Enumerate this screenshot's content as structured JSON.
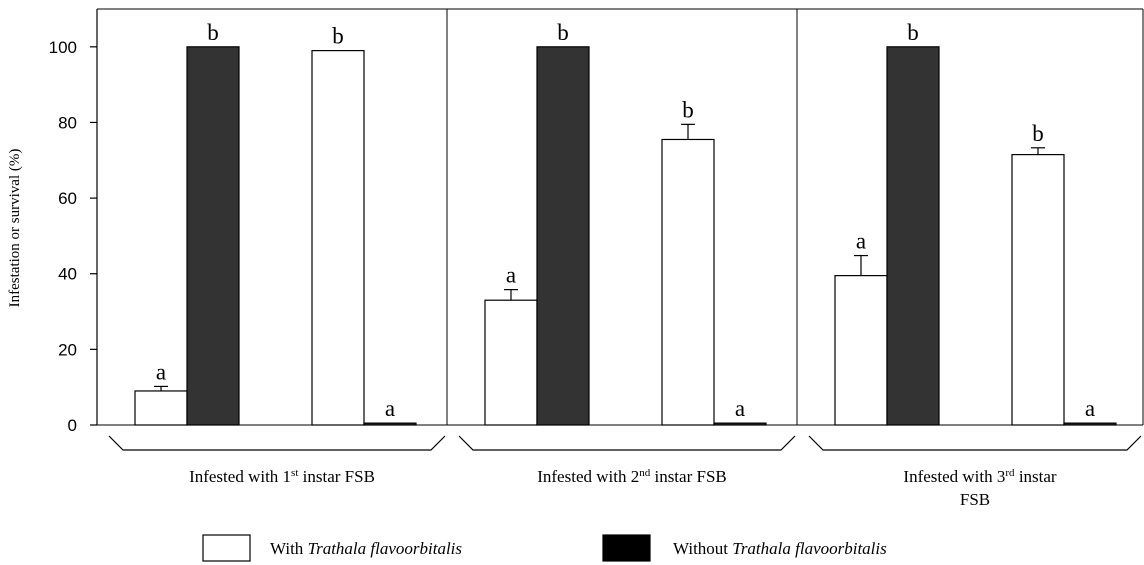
{
  "chart_data": {
    "type": "bar",
    "ylabel": "Infestation or survival (%)",
    "ylim": [
      0,
      110
    ],
    "yticks": [
      0,
      20,
      40,
      60,
      80,
      100
    ],
    "groups": [
      {
        "label_parts": [
          {
            "text": "Infested with 1",
            "sup": false
          },
          {
            "text": "st",
            "sup": true
          },
          {
            "text": " instar FSB",
            "sup": false
          }
        ],
        "bars": [
          {
            "value": 9,
            "error": 1.2,
            "fill": "white",
            "letter": "a"
          },
          {
            "value": 100,
            "error": 0,
            "fill": "dark",
            "letter": "b"
          },
          {
            "value": 99,
            "error": 0,
            "fill": "white",
            "letter": "b"
          },
          {
            "value": 0.5,
            "error": 0,
            "fill": "dark",
            "letter": "a"
          }
        ]
      },
      {
        "label_parts": [
          {
            "text": "Infested with 2",
            "sup": false
          },
          {
            "text": "nd",
            "sup": true
          },
          {
            "text": "  instar FSB",
            "sup": false
          }
        ],
        "bars": [
          {
            "value": 33,
            "error": 2.8,
            "fill": "white",
            "letter": "a"
          },
          {
            "value": 100,
            "error": 0,
            "fill": "dark",
            "letter": "b"
          },
          {
            "value": 75.5,
            "error": 4,
            "fill": "white",
            "letter": "b"
          },
          {
            "value": 0.5,
            "error": 0,
            "fill": "dark",
            "letter": "a"
          }
        ]
      },
      {
        "label_parts": [
          {
            "text": "Infested with 3",
            "sup": false
          },
          {
            "text": "rd",
            "sup": true
          },
          {
            "text": " instar",
            "sup": false
          }
        ],
        "label_line2": "FSB",
        "bars": [
          {
            "value": 39.5,
            "error": 5.3,
            "fill": "white",
            "letter": "a"
          },
          {
            "value": 100,
            "error": 0,
            "fill": "dark",
            "letter": "b"
          },
          {
            "value": 71.5,
            "error": 1.8,
            "fill": "white",
            "letter": "b"
          },
          {
            "value": 0.5,
            "error": 0,
            "fill": "dark",
            "letter": "a"
          }
        ]
      }
    ],
    "legend": [
      {
        "prefix": "With ",
        "italic": "Trathala flavoorbitalis",
        "swatch": "white"
      },
      {
        "prefix": "Without ",
        "italic": "Trathala flavoorbitalis",
        "swatch": "black"
      }
    ],
    "colors": {
      "white_bar": "#ffffff",
      "dark_bar": "#333333",
      "legend_black": "#000000",
      "axis": "#000000"
    }
  }
}
